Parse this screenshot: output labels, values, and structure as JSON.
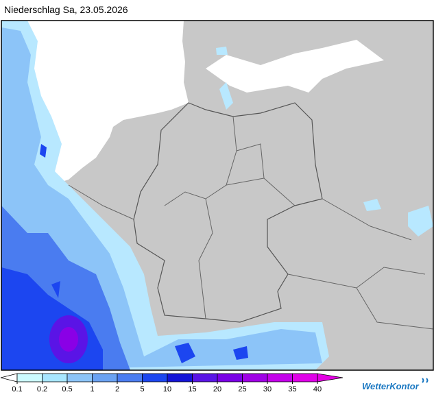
{
  "header": {
    "title": "Niederschlag Sa, 23.05.2026"
  },
  "legend": {
    "ticks": [
      0.1,
      0.2,
      0.5,
      1,
      2,
      5,
      10,
      15,
      20,
      25,
      30,
      35,
      40
    ],
    "colors": [
      "#ccfbff",
      "#a8e6ff",
      "#8cc4f8",
      "#6aa2f2",
      "#4a7cf0",
      "#1c46f0",
      "#1414d8",
      "#5a14e6",
      "#7a00e6",
      "#a000e6",
      "#c400ea",
      "#e000e8"
    ],
    "under_color": "#ffffff",
    "over_color": "#e400e4"
  },
  "logo": "WetterKontor"
}
